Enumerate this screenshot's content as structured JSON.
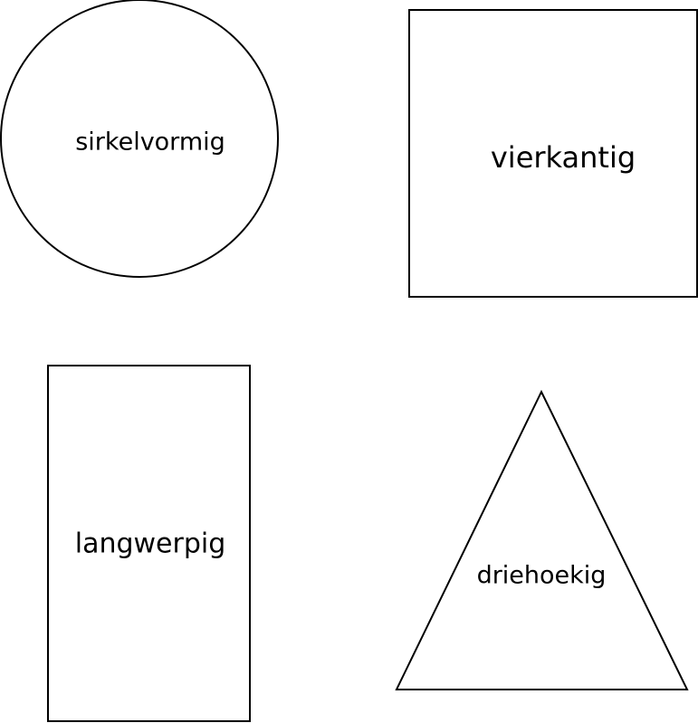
{
  "colors": {
    "stroke": "#000000",
    "text": "#000000",
    "background": "#ffffff"
  },
  "shapes": {
    "circle": {
      "label": "sirkelvormig"
    },
    "square": {
      "label": "vierkantig"
    },
    "rectangle": {
      "label": "langwerpig"
    },
    "triangle": {
      "label": "driehoekig"
    }
  }
}
